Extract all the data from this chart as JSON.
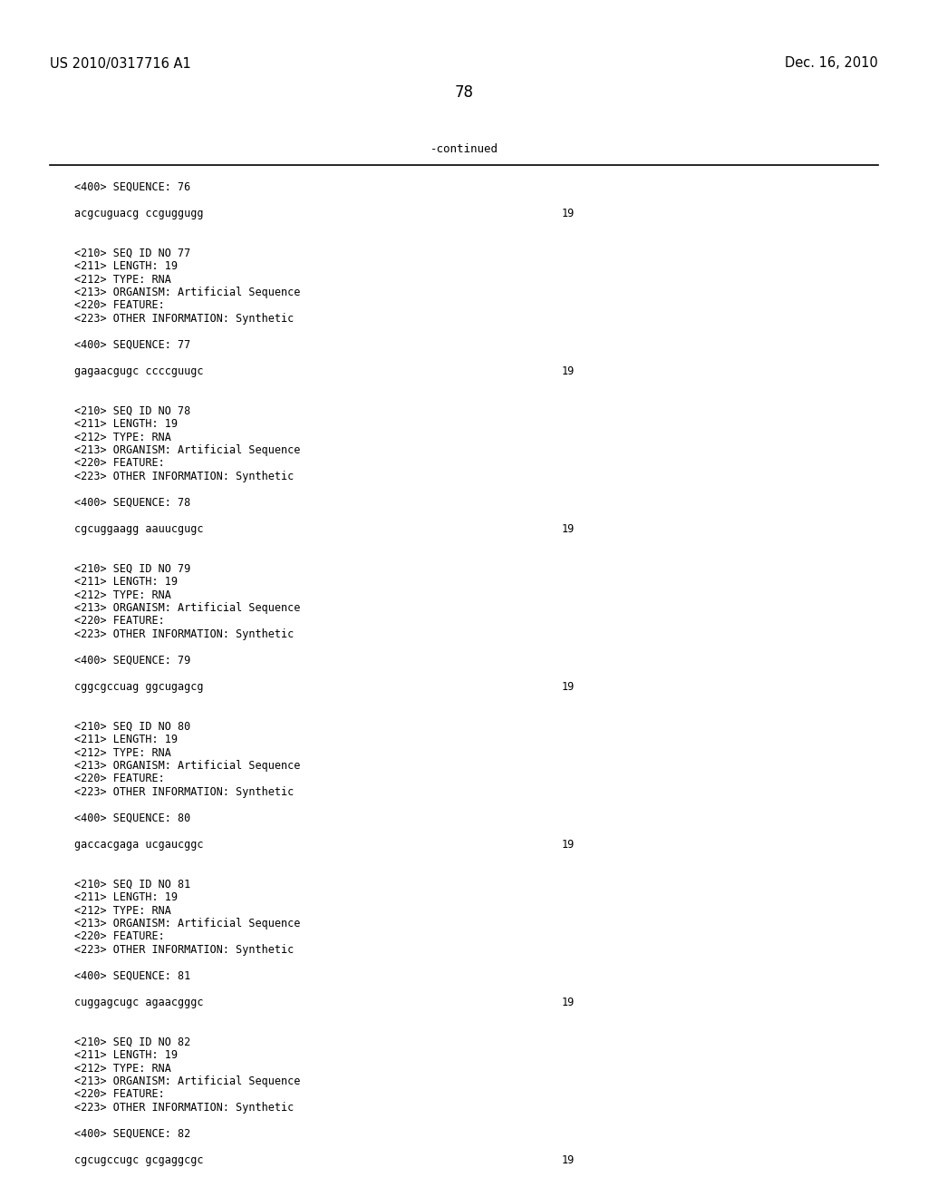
{
  "header_left": "US 2010/0317716 A1",
  "header_right": "Dec. 16, 2010",
  "page_number": "78",
  "continued_label": "-continued",
  "background_color": "#ffffff",
  "text_color": "#000000",
  "content_blocks": [
    {
      "type": "seq400",
      "text": "<400> SEQUENCE: 76"
    },
    {
      "type": "blank"
    },
    {
      "type": "sequence",
      "text": "acgcuguacg ccguggugg",
      "length": "19"
    },
    {
      "type": "blank"
    },
    {
      "type": "blank"
    },
    {
      "type": "seq210",
      "text": "<210> SEQ ID NO 77"
    },
    {
      "type": "meta",
      "text": "<211> LENGTH: 19"
    },
    {
      "type": "meta",
      "text": "<212> TYPE: RNA"
    },
    {
      "type": "meta",
      "text": "<213> ORGANISM: Artificial Sequence"
    },
    {
      "type": "meta",
      "text": "<220> FEATURE:"
    },
    {
      "type": "meta",
      "text": "<223> OTHER INFORMATION: Synthetic"
    },
    {
      "type": "blank"
    },
    {
      "type": "seq400",
      "text": "<400> SEQUENCE: 77"
    },
    {
      "type": "blank"
    },
    {
      "type": "sequence",
      "text": "gagaacgugc ccccguugc",
      "length": "19"
    },
    {
      "type": "blank"
    },
    {
      "type": "blank"
    },
    {
      "type": "seq210",
      "text": "<210> SEQ ID NO 78"
    },
    {
      "type": "meta",
      "text": "<211> LENGTH: 19"
    },
    {
      "type": "meta",
      "text": "<212> TYPE: RNA"
    },
    {
      "type": "meta",
      "text": "<213> ORGANISM: Artificial Sequence"
    },
    {
      "type": "meta",
      "text": "<220> FEATURE:"
    },
    {
      "type": "meta",
      "text": "<223> OTHER INFORMATION: Synthetic"
    },
    {
      "type": "blank"
    },
    {
      "type": "seq400",
      "text": "<400> SEQUENCE: 78"
    },
    {
      "type": "blank"
    },
    {
      "type": "sequence",
      "text": "cgcuggaagg aauucgugc",
      "length": "19"
    },
    {
      "type": "blank"
    },
    {
      "type": "blank"
    },
    {
      "type": "seq210",
      "text": "<210> SEQ ID NO 79"
    },
    {
      "type": "meta",
      "text": "<211> LENGTH: 19"
    },
    {
      "type": "meta",
      "text": "<212> TYPE: RNA"
    },
    {
      "type": "meta",
      "text": "<213> ORGANISM: Artificial Sequence"
    },
    {
      "type": "meta",
      "text": "<220> FEATURE:"
    },
    {
      "type": "meta",
      "text": "<223> OTHER INFORMATION: Synthetic"
    },
    {
      "type": "blank"
    },
    {
      "type": "seq400",
      "text": "<400> SEQUENCE: 79"
    },
    {
      "type": "blank"
    },
    {
      "type": "sequence",
      "text": "cggcgccuag ggcugagcg",
      "length": "19"
    },
    {
      "type": "blank"
    },
    {
      "type": "blank"
    },
    {
      "type": "seq210",
      "text": "<210> SEQ ID NO 80"
    },
    {
      "type": "meta",
      "text": "<211> LENGTH: 19"
    },
    {
      "type": "meta",
      "text": "<212> TYPE: RNA"
    },
    {
      "type": "meta",
      "text": "<213> ORGANISM: Artificial Sequence"
    },
    {
      "type": "meta",
      "text": "<220> FEATURE:"
    },
    {
      "type": "meta",
      "text": "<223> OTHER INFORMATION: Synthetic"
    },
    {
      "type": "blank"
    },
    {
      "type": "seq400",
      "text": "<400> SEQUENCE: 80"
    },
    {
      "type": "blank"
    },
    {
      "type": "sequence",
      "text": "gaccacgaga ucgaucggc",
      "length": "19"
    },
    {
      "type": "blank"
    },
    {
      "type": "blank"
    },
    {
      "type": "seq210",
      "text": "<210> SEQ ID NO 81"
    },
    {
      "type": "meta",
      "text": "<211> LENGTH: 19"
    },
    {
      "type": "meta",
      "text": "<212> TYPE: RNA"
    },
    {
      "type": "meta",
      "text": "<213> ORGANISM: Artificial Sequence"
    },
    {
      "type": "meta",
      "text": "<220> FEATURE:"
    },
    {
      "type": "meta",
      "text": "<223> OTHER INFORMATION: Synthetic"
    },
    {
      "type": "blank"
    },
    {
      "type": "seq400",
      "text": "<400> SEQUENCE: 81"
    },
    {
      "type": "blank"
    },
    {
      "type": "sequence",
      "text": "cuggagcugc agaacgggc",
      "length": "19"
    },
    {
      "type": "blank"
    },
    {
      "type": "blank"
    },
    {
      "type": "seq210",
      "text": "<210> SEQ ID NO 82"
    },
    {
      "type": "meta",
      "text": "<211> LENGTH: 19"
    },
    {
      "type": "meta",
      "text": "<212> TYPE: RNA"
    },
    {
      "type": "meta",
      "text": "<213> ORGANISM: Artificial Sequence"
    },
    {
      "type": "meta",
      "text": "<220> FEATURE:"
    },
    {
      "type": "meta",
      "text": "<223> OTHER INFORMATION: Synthetic"
    },
    {
      "type": "blank"
    },
    {
      "type": "seq400",
      "text": "<400> SEQUENCE: 82"
    },
    {
      "type": "blank"
    },
    {
      "type": "sequence",
      "text": "cgcugccugc gcgaggcgc",
      "length": "19"
    }
  ],
  "mono_fontsize": 8.5,
  "header_fontsize": 10.5,
  "page_num_fontsize": 12
}
